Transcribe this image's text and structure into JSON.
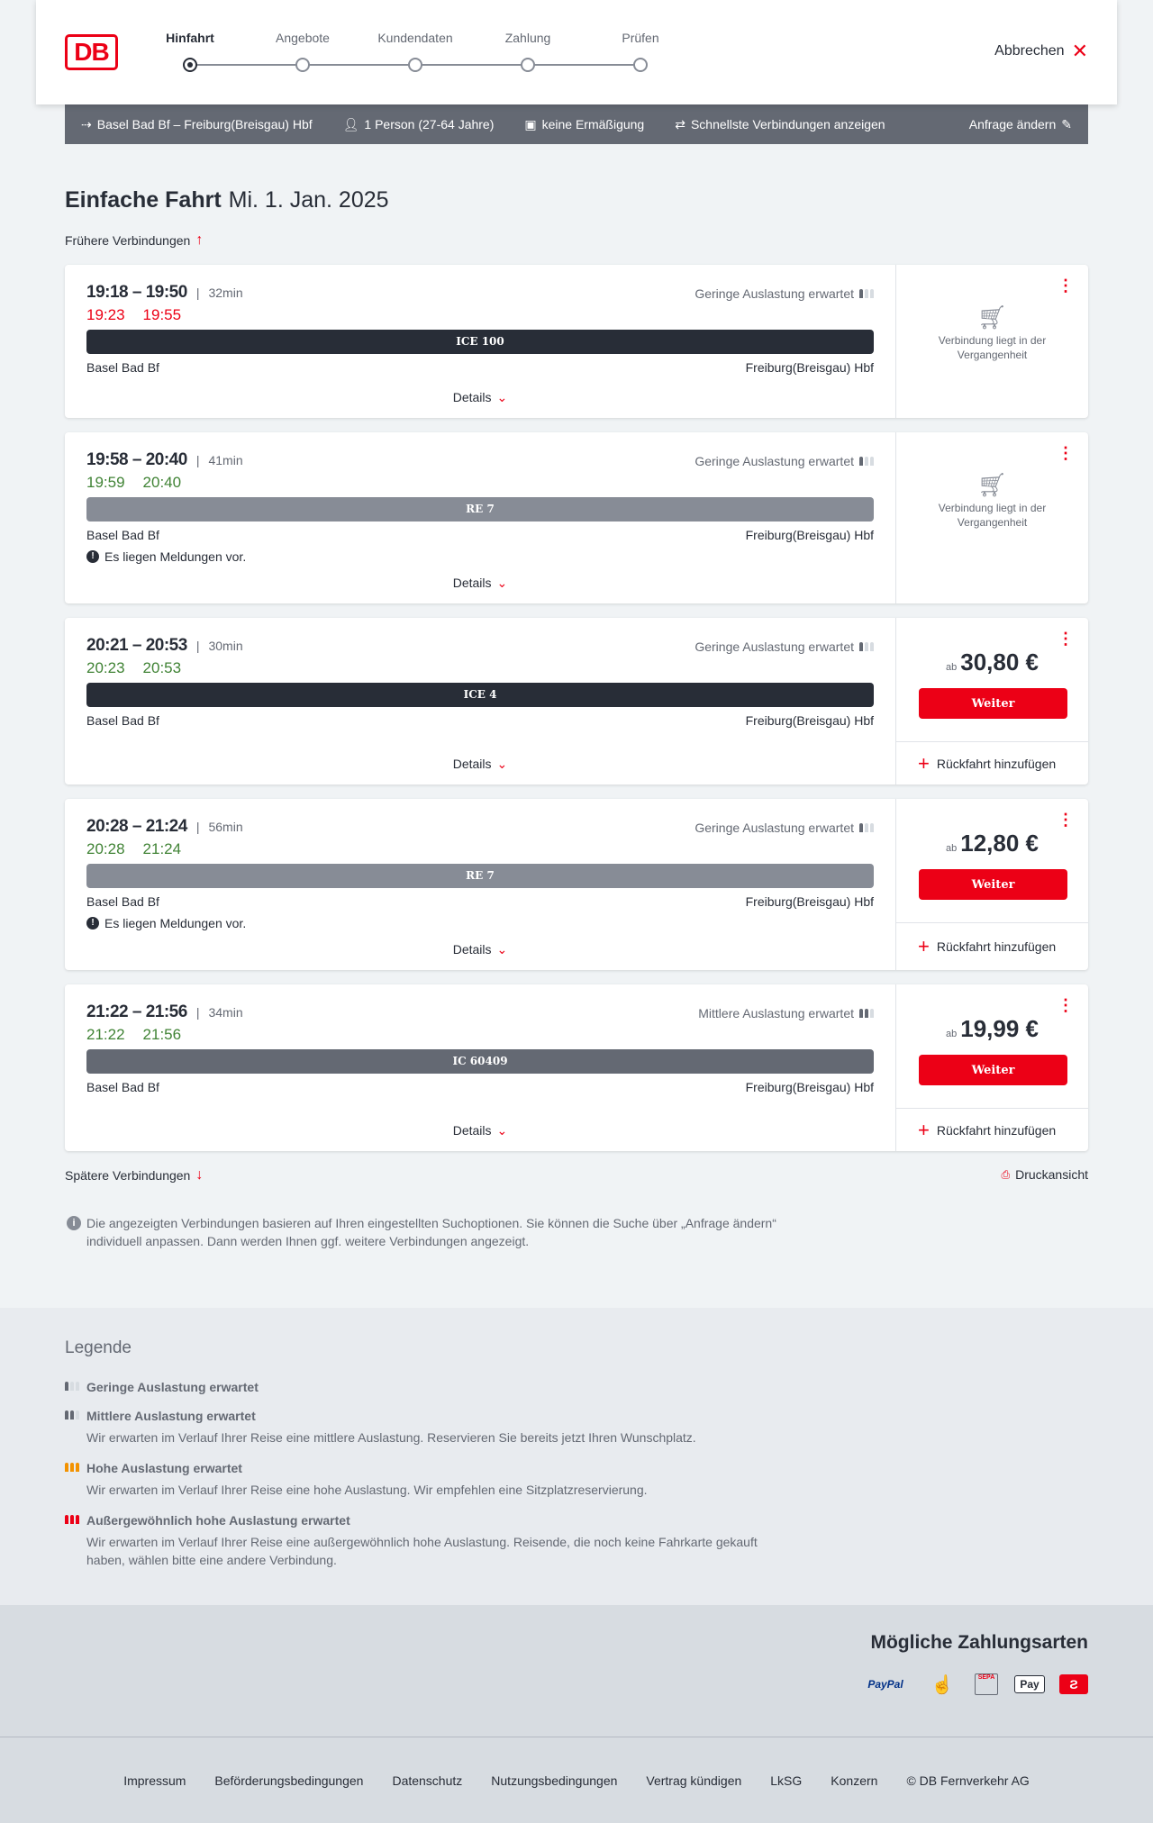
{
  "header": {
    "logo": "DB",
    "steps": [
      "Hinfahrt",
      "Angebote",
      "Kundendaten",
      "Zahlung",
      "Prüfen"
    ],
    "active_step": 0,
    "cancel": "Abbrechen"
  },
  "infobar": {
    "route": "Basel Bad Bf – Freiburg(Breisgau) Hbf",
    "passengers": "1 Person (27-64 Jahre)",
    "discount": "keine Ermäßigung",
    "option": "Schnellste Verbindungen anzeigen",
    "edit": "Anfrage ändern"
  },
  "title": {
    "type": "Einfache Fahrt",
    "date": "Mi. 1. Jan. 2025"
  },
  "earlier": "Frühere Verbindungen",
  "later": "Spätere Verbindungen",
  "print": "Druckansicht",
  "details_label": "Details",
  "colors": {
    "accent": "#ec0016",
    "delay": "#ec0016",
    "ontime": "#408335"
  },
  "connections": [
    {
      "time": "19:18 – 19:50",
      "duration": "32min",
      "rt_dep": "19:23",
      "rt_arr": "19:55",
      "rt_status": "delay",
      "load": "Geringe Auslastung erwartet",
      "load_level": 1,
      "train": "ICE 100",
      "train_color": "#282d37",
      "from": "Basel Bad Bf",
      "to": "Freiburg(Breisgau) Hbf",
      "message": null,
      "past": "Verbindung liegt in der Vergangenheit"
    },
    {
      "time": "19:58 – 20:40",
      "duration": "41min",
      "rt_dep": "19:59",
      "rt_arr": "20:40",
      "rt_status": "ontime",
      "load": "Geringe Auslastung erwartet",
      "load_level": 1,
      "train": "RE 7",
      "train_color": "#878c96",
      "from": "Basel Bad Bf",
      "to": "Freiburg(Breisgau) Hbf",
      "message": "Es liegen Meldungen vor.",
      "past": "Verbindung liegt in der Vergangenheit"
    },
    {
      "time": "20:21 – 20:53",
      "duration": "30min",
      "rt_dep": "20:23",
      "rt_arr": "20:53",
      "rt_status": "ontime",
      "load": "Geringe Auslastung erwartet",
      "load_level": 1,
      "train": "ICE 4",
      "train_color": "#282d37",
      "from": "Basel Bad Bf",
      "to": "Freiburg(Breisgau) Hbf",
      "message": null,
      "price_prefix": "ab",
      "price": "30,80 €",
      "button": "Weiter",
      "return": "Rückfahrt hinzufügen"
    },
    {
      "time": "20:28 – 21:24",
      "duration": "56min",
      "rt_dep": "20:28",
      "rt_arr": "21:24",
      "rt_status": "ontime",
      "load": "Geringe Auslastung erwartet",
      "load_level": 1,
      "train": "RE 7",
      "train_color": "#878c96",
      "from": "Basel Bad Bf",
      "to": "Freiburg(Breisgau) Hbf",
      "message": "Es liegen Meldungen vor.",
      "price_prefix": "ab",
      "price": "12,80 €",
      "button": "Weiter",
      "return": "Rückfahrt hinzufügen"
    },
    {
      "time": "21:22 – 21:56",
      "duration": "34min",
      "rt_dep": "21:22",
      "rt_arr": "21:56",
      "rt_status": "ontime",
      "load": "Mittlere Auslastung erwartet",
      "load_level": 2,
      "train": "IC 60409",
      "train_color": "#646973",
      "from": "Basel Bad Bf",
      "to": "Freiburg(Breisgau) Hbf",
      "message": null,
      "price_prefix": "ab",
      "price": "19,99 €",
      "button": "Weiter",
      "return": "Rückfahrt hinzufügen"
    }
  ],
  "note": "Die angezeigten Verbindungen basieren auf Ihren eingestellten Suchoptionen. Sie können die Suche über „Anfrage ändern“ individuell anpassen. Dann werden Ihnen ggf. weitere Verbindungen angezeigt.",
  "legend": {
    "title": "Legende",
    "items": [
      {
        "title": "Geringe Auslastung erwartet",
        "text": "",
        "level": 1,
        "color": "#646973"
      },
      {
        "title": "Mittlere Auslastung erwartet",
        "text": "Wir erwarten im Verlauf Ihrer Reise eine mittlere Auslastung. Reservieren Sie bereits jetzt Ihren Wunschplatz.",
        "level": 2,
        "color": "#646973"
      },
      {
        "title": "Hohe Auslastung erwartet",
        "text": "Wir erwarten im Verlauf Ihrer Reise eine hohe Auslastung. Wir empfehlen eine Sitzplatzreservierung.",
        "level": 3,
        "color": "#f39200"
      },
      {
        "title": "Außergewöhnlich hohe Auslastung erwartet",
        "text": "Wir erwarten im Verlauf Ihrer Reise eine außergewöhnlich hohe Auslastung. Reisende, die noch keine Fahrkarte gekauft haben, wählen bitte eine andere Verbindung.",
        "level": 4,
        "color": "#ec0016"
      }
    ]
  },
  "payment": {
    "title": "Mögliche Zahlungsarten",
    "methods": [
      "PayPal",
      "credit-card-icon",
      "SEPA",
      "Pay",
      "db-bonus-icon"
    ]
  },
  "footer": [
    "Impressum",
    "Beförderungsbedingungen",
    "Datenschutz",
    "Nutzungsbedingungen",
    "Vertrag kündigen",
    "LkSG",
    "Konzern",
    "© DB Fernverkehr AG"
  ]
}
